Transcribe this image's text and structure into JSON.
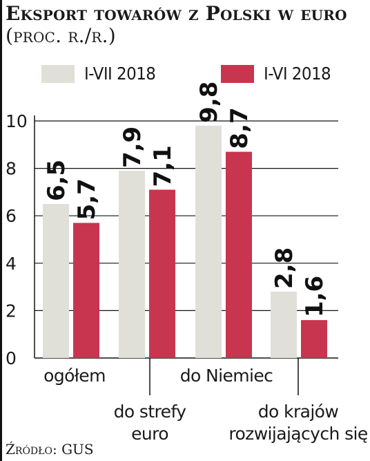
{
  "chart_data": {
    "type": "bar",
    "title": "Eksport towarów z Polski w euro",
    "title_unit": "(proc. r./r.)",
    "categories": [
      "ogółem",
      "do strefy euro",
      "do Niemiec",
      "do krajów rozwijających się"
    ],
    "category_lines": [
      [
        "ogółem"
      ],
      [
        "do strefy",
        "euro"
      ],
      [
        "do Niemiec"
      ],
      [
        "do krajów",
        "rozwijających się"
      ]
    ],
    "series": [
      {
        "name": "I-VII 2018",
        "values": [
          6.5,
          7.9,
          9.8,
          2.8
        ],
        "labels": [
          "6,5",
          "7,9",
          "9,8",
          "2,8"
        ]
      },
      {
        "name": "I-VI 2018",
        "values": [
          5.7,
          7.1,
          8.7,
          1.6
        ],
        "labels": [
          "5,7",
          "7,1",
          "8,7",
          "1,6"
        ]
      }
    ],
    "ylim": [
      0,
      10
    ],
    "yticks": [
      0,
      2,
      4,
      6,
      8,
      10
    ],
    "grid": true,
    "legend_position": "top"
  },
  "colors": {
    "series_1": "#e0e0d8",
    "series_2": "#c8354f",
    "axis": "#111111",
    "grid": "#111111"
  },
  "source": "Źródło: GUS"
}
